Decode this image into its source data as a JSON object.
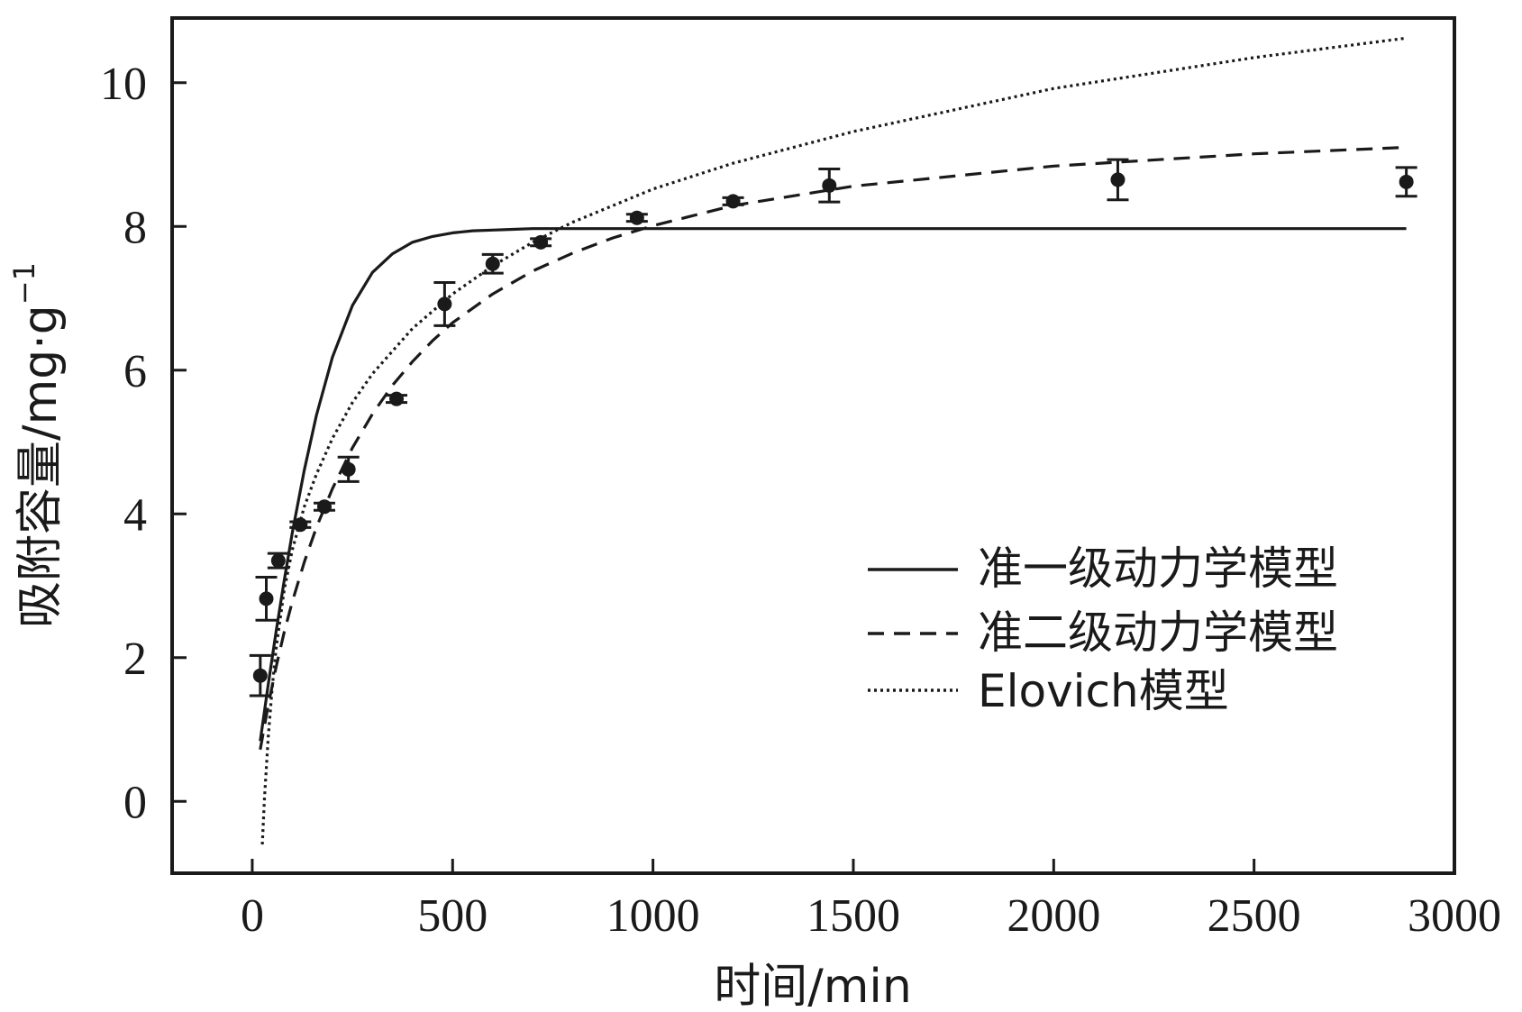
{
  "chart_data": {
    "type": "line",
    "xlabel": "时间/min",
    "ylabel_main": "吸附容量/mg·g",
    "ylabel_sup": "−1",
    "xlim": [
      -200,
      3000
    ],
    "ylim": [
      -1,
      10.9
    ],
    "x_ticks": [
      0,
      500,
      1000,
      1500,
      2000,
      2500,
      3000
    ],
    "y_ticks": [
      0,
      2,
      4,
      6,
      8,
      10
    ],
    "x_tick_labels": [
      "0",
      "500",
      "1000",
      "1500",
      "2000",
      "2500",
      "3000"
    ],
    "y_tick_labels": [
      "0",
      "2",
      "4",
      "6",
      "8",
      "10"
    ],
    "legend_position": "lower-right",
    "grid": false,
    "series": [
      {
        "name": "准一级动力学模型",
        "style": "solid",
        "x": [
          20,
          40,
          60,
          80,
          100,
          130,
          160,
          200,
          250,
          300,
          350,
          400,
          450,
          500,
          550,
          600,
          650,
          700,
          750,
          800,
          900,
          1000,
          1100,
          1200,
          1500,
          2000,
          2500,
          2880
        ],
        "y": [
          0.84,
          1.63,
          2.38,
          3.08,
          3.74,
          4.61,
          5.37,
          6.18,
          6.9,
          7.36,
          7.62,
          7.78,
          7.86,
          7.91,
          7.94,
          7.95,
          7.96,
          7.97,
          7.97,
          7.97,
          7.97,
          7.97,
          7.97,
          7.97,
          7.97,
          7.97,
          7.97,
          7.97
        ]
      },
      {
        "name": "准二级动力学模型",
        "style": "dashed",
        "x": [
          20,
          40,
          60,
          80,
          100,
          130,
          160,
          200,
          250,
          300,
          350,
          400,
          450,
          500,
          600,
          700,
          800,
          900,
          1000,
          1200,
          1500,
          2000,
          2500,
          2880
        ],
        "y": [
          0.72,
          1.34,
          1.88,
          2.36,
          2.78,
          3.33,
          3.81,
          4.35,
          4.92,
          5.39,
          5.79,
          6.12,
          6.41,
          6.66,
          7.06,
          7.38,
          7.63,
          7.84,
          8.01,
          8.29,
          8.56,
          8.84,
          9.01,
          9.1
        ]
      },
      {
        "name": "Elovich模型",
        "style": "dotted",
        "x": [
          25,
          30,
          40,
          50,
          60,
          80,
          100,
          130,
          160,
          200,
          250,
          300,
          400,
          500,
          600,
          700,
          800,
          1000,
          1200,
          1500,
          2000,
          2500,
          2880
        ],
        "y": [
          -0.6,
          0.0,
          0.9,
          1.6,
          2.15,
          2.95,
          3.5,
          4.1,
          4.55,
          5.05,
          5.55,
          5.95,
          6.58,
          7.06,
          7.45,
          7.78,
          8.06,
          8.52,
          8.88,
          9.32,
          9.92,
          10.35,
          10.62
        ]
      }
    ],
    "measured": {
      "x": [
        20,
        35,
        65,
        120,
        180,
        240,
        360,
        480,
        600,
        720,
        960,
        1200,
        1440,
        2160,
        2880
      ],
      "y": [
        1.75,
        2.82,
        3.35,
        3.85,
        4.1,
        4.62,
        5.6,
        6.92,
        7.48,
        7.78,
        8.12,
        8.35,
        8.57,
        8.65,
        8.62
      ],
      "err": [
        0.28,
        0.3,
        0.1,
        0.04,
        0.05,
        0.17,
        0.05,
        0.3,
        0.13,
        0.05,
        0.05,
        0.05,
        0.23,
        0.28,
        0.2
      ]
    }
  }
}
